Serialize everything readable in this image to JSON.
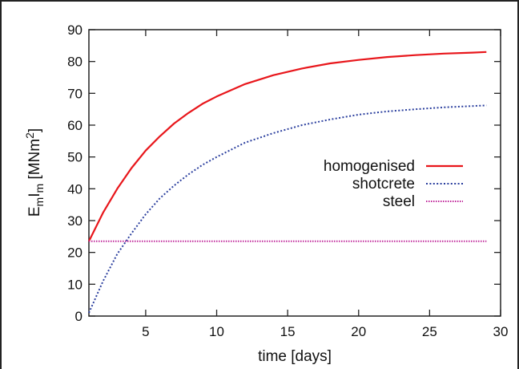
{
  "chart_data": {
    "type": "line",
    "xlabel": "time [days]",
    "ylabel": {
      "E": "E",
      "m1": "m",
      "I": "I",
      "m2": "m",
      "unit_open": " [MNm",
      "exp": "2",
      "unit_close": "]"
    },
    "xlim": [
      1,
      30
    ],
    "ylim": [
      0,
      90
    ],
    "xticks": [
      5,
      10,
      15,
      20,
      25,
      30
    ],
    "yticks": [
      0,
      10,
      20,
      30,
      40,
      50,
      60,
      70,
      80,
      90
    ],
    "grid": false,
    "legend_position": "right",
    "series": [
      {
        "name": "homogenised",
        "color": "#e8161b",
        "style": "solid",
        "x": [
          1,
          2,
          3,
          4,
          5,
          6,
          7,
          8,
          9,
          10,
          12,
          14,
          16,
          18,
          20,
          22,
          24,
          26,
          28,
          29
        ],
        "y": [
          23.5,
          32.5,
          40.0,
          46.5,
          52.0,
          56.5,
          60.5,
          63.8,
          66.7,
          69.0,
          72.9,
          75.7,
          77.8,
          79.4,
          80.5,
          81.4,
          82.0,
          82.5,
          82.8,
          83.0
        ]
      },
      {
        "name": "shotcrete",
        "color": "#2b3f9e",
        "style": "dotted",
        "x": [
          1,
          2,
          3,
          4,
          5,
          6,
          7,
          8,
          9,
          10,
          12,
          14,
          16,
          18,
          20,
          22,
          24,
          26,
          28,
          29
        ],
        "y": [
          1.0,
          11.0,
          19.5,
          26.0,
          32.0,
          37.0,
          41.0,
          44.5,
          47.5,
          50.0,
          54.5,
          57.5,
          60.0,
          61.8,
          63.3,
          64.3,
          65.0,
          65.6,
          66.0,
          66.2
        ]
      },
      {
        "name": "steel",
        "color": "#c0289b",
        "style": "dotted",
        "x": [
          1,
          29
        ],
        "y": [
          23.5,
          23.5
        ]
      }
    ]
  }
}
